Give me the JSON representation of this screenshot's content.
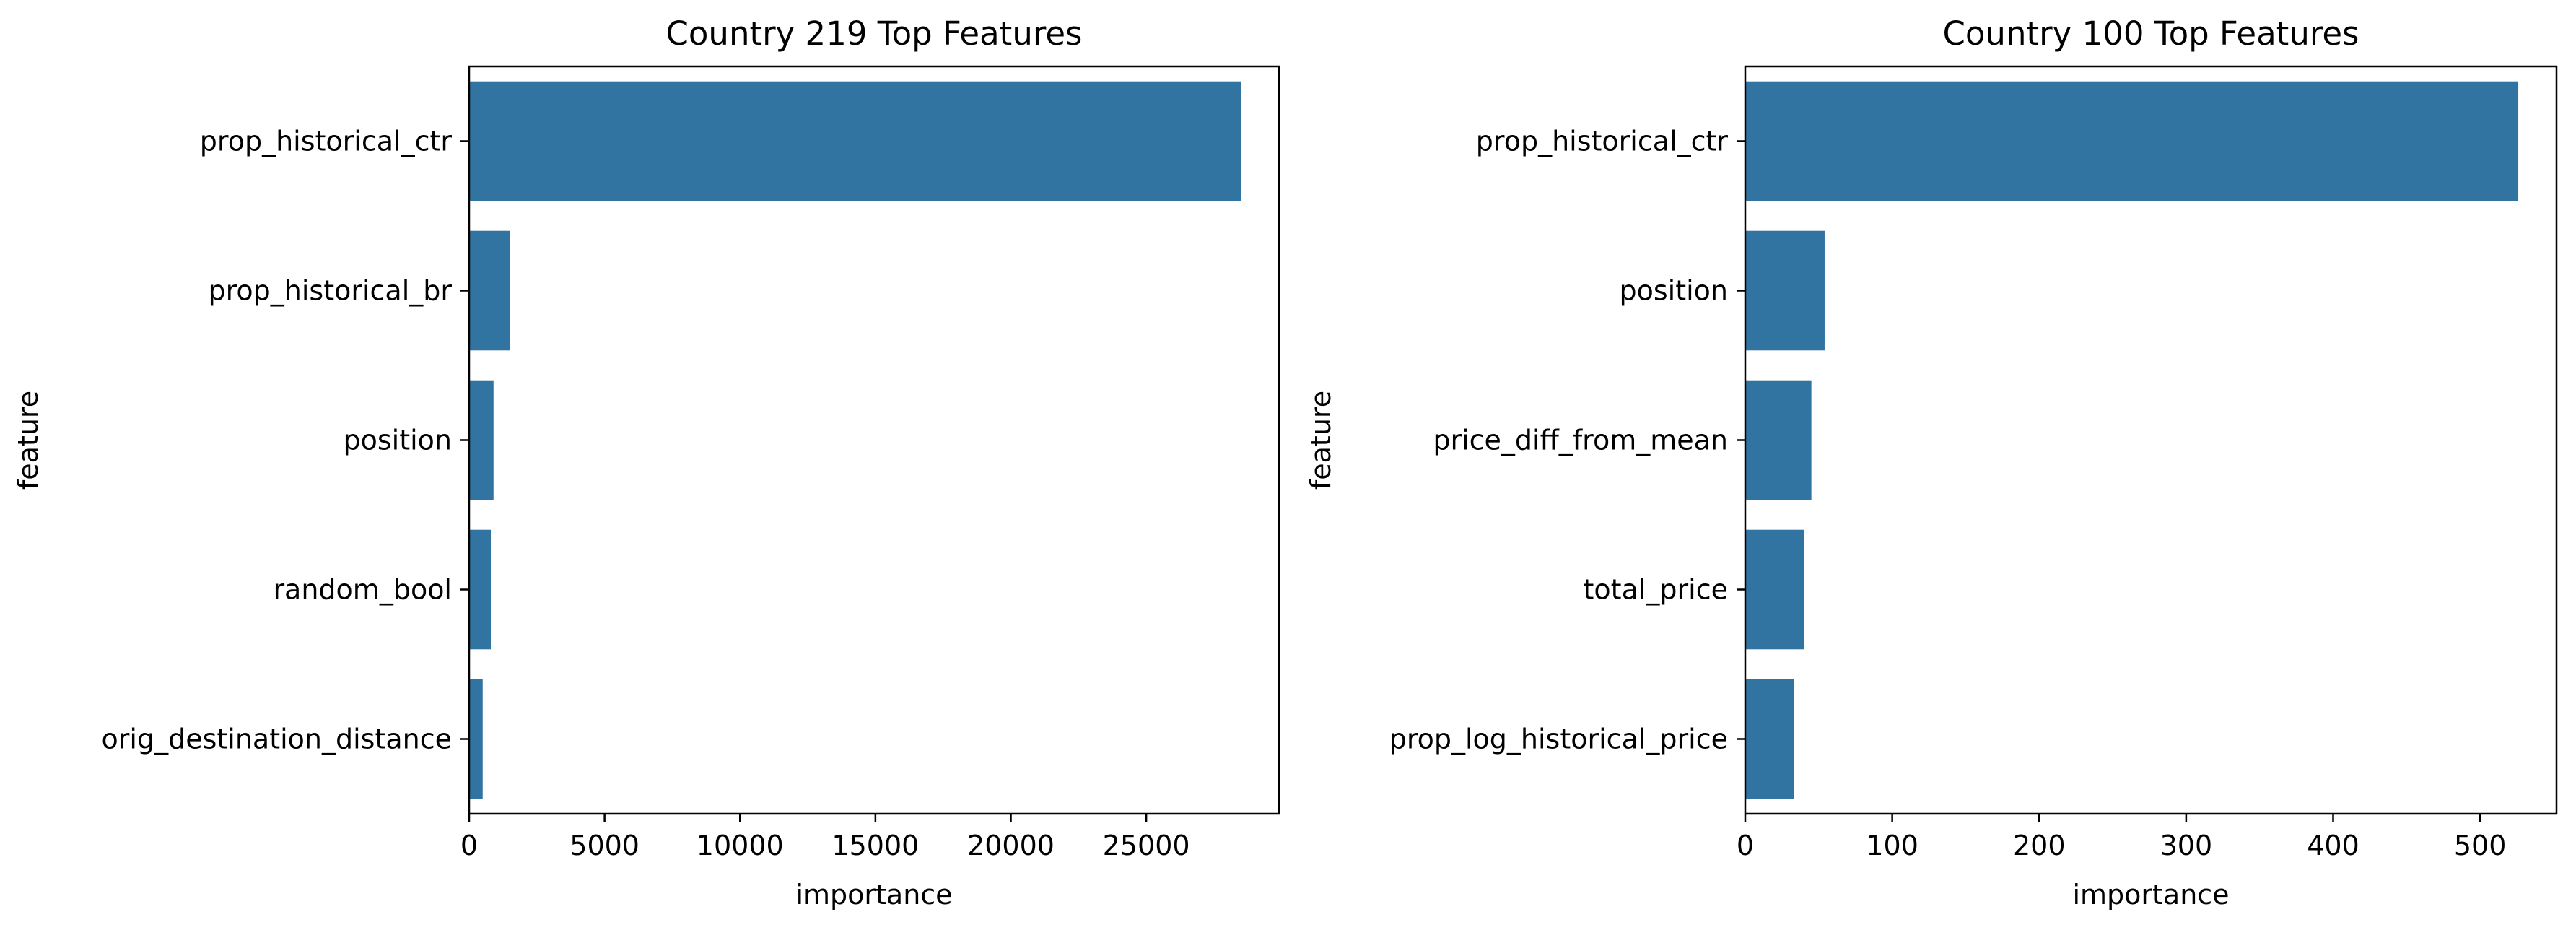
{
  "chart_data": [
    {
      "type": "bar",
      "orientation": "horizontal",
      "title": "Country 219 Top Features",
      "xlabel": "importance",
      "ylabel": "feature",
      "categories": [
        "prop_historical_ctr",
        "prop_historical_br",
        "position",
        "random_bool",
        "orig_destination_distance"
      ],
      "values": [
        28500,
        1500,
        900,
        800,
        500
      ],
      "xlim": [
        0,
        29900
      ],
      "xticks": [
        0,
        5000,
        10000,
        15000,
        20000,
        25000
      ],
      "color": "#3274a1",
      "grid": false,
      "legend": false
    },
    {
      "type": "bar",
      "orientation": "horizontal",
      "title": "Country 100 Top Features",
      "xlabel": "importance",
      "ylabel": "feature",
      "categories": [
        "prop_historical_ctr",
        "position",
        "price_diff_from_mean",
        "total_price",
        "prop_log_historical_price"
      ],
      "values": [
        526,
        54,
        45,
        40,
        33
      ],
      "xlim": [
        0,
        552
      ],
      "xticks": [
        0,
        100,
        200,
        300,
        400,
        500
      ],
      "color": "#3274a1",
      "grid": false,
      "legend": false
    }
  ]
}
